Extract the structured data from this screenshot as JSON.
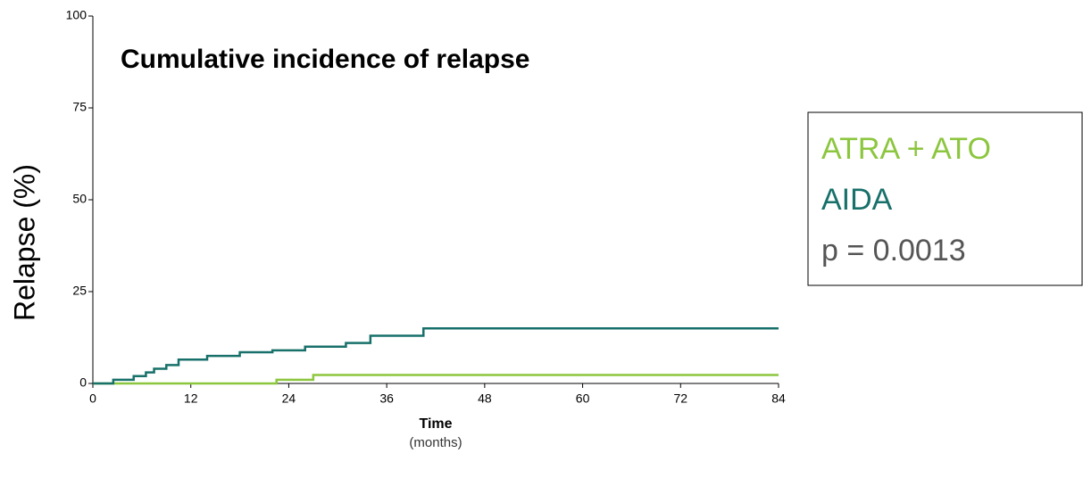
{
  "chart_data": {
    "type": "line",
    "title": "Cumulative incidence of relapse",
    "xlabel": "Time",
    "xlabel_note": "(months)",
    "ylabel": "Relapse (%)",
    "xlim": [
      0,
      84
    ],
    "xticks": [
      0,
      12,
      24,
      36,
      48,
      60,
      72,
      84
    ],
    "ylim": [
      0,
      100
    ],
    "yticks": [
      0,
      25,
      50,
      75,
      100
    ],
    "series": [
      {
        "name": "ATRA + ATO",
        "color": "#8cc63e",
        "x": [
          0,
          22.5,
          22.5,
          27,
          27,
          84
        ],
        "values": [
          0,
          0,
          1,
          1,
          2.3,
          2.3
        ]
      },
      {
        "name": "AIDA",
        "color": "#17706a",
        "x": [
          0,
          2.5,
          2.5,
          5,
          5,
          6.5,
          6.5,
          7.5,
          7.5,
          9,
          9,
          10.5,
          10.5,
          14,
          14,
          18,
          18,
          22,
          22,
          26,
          26,
          31,
          31,
          34,
          34,
          40.5,
          40.5,
          84
        ],
        "values": [
          0,
          0,
          1,
          1,
          2,
          2,
          3,
          3,
          4,
          4,
          5,
          5,
          6.5,
          6.5,
          7.5,
          7.5,
          8.5,
          8.5,
          9,
          9,
          10,
          10,
          11,
          11,
          13,
          13,
          15,
          15
        ]
      }
    ],
    "annotation": "p = 0.0013"
  }
}
